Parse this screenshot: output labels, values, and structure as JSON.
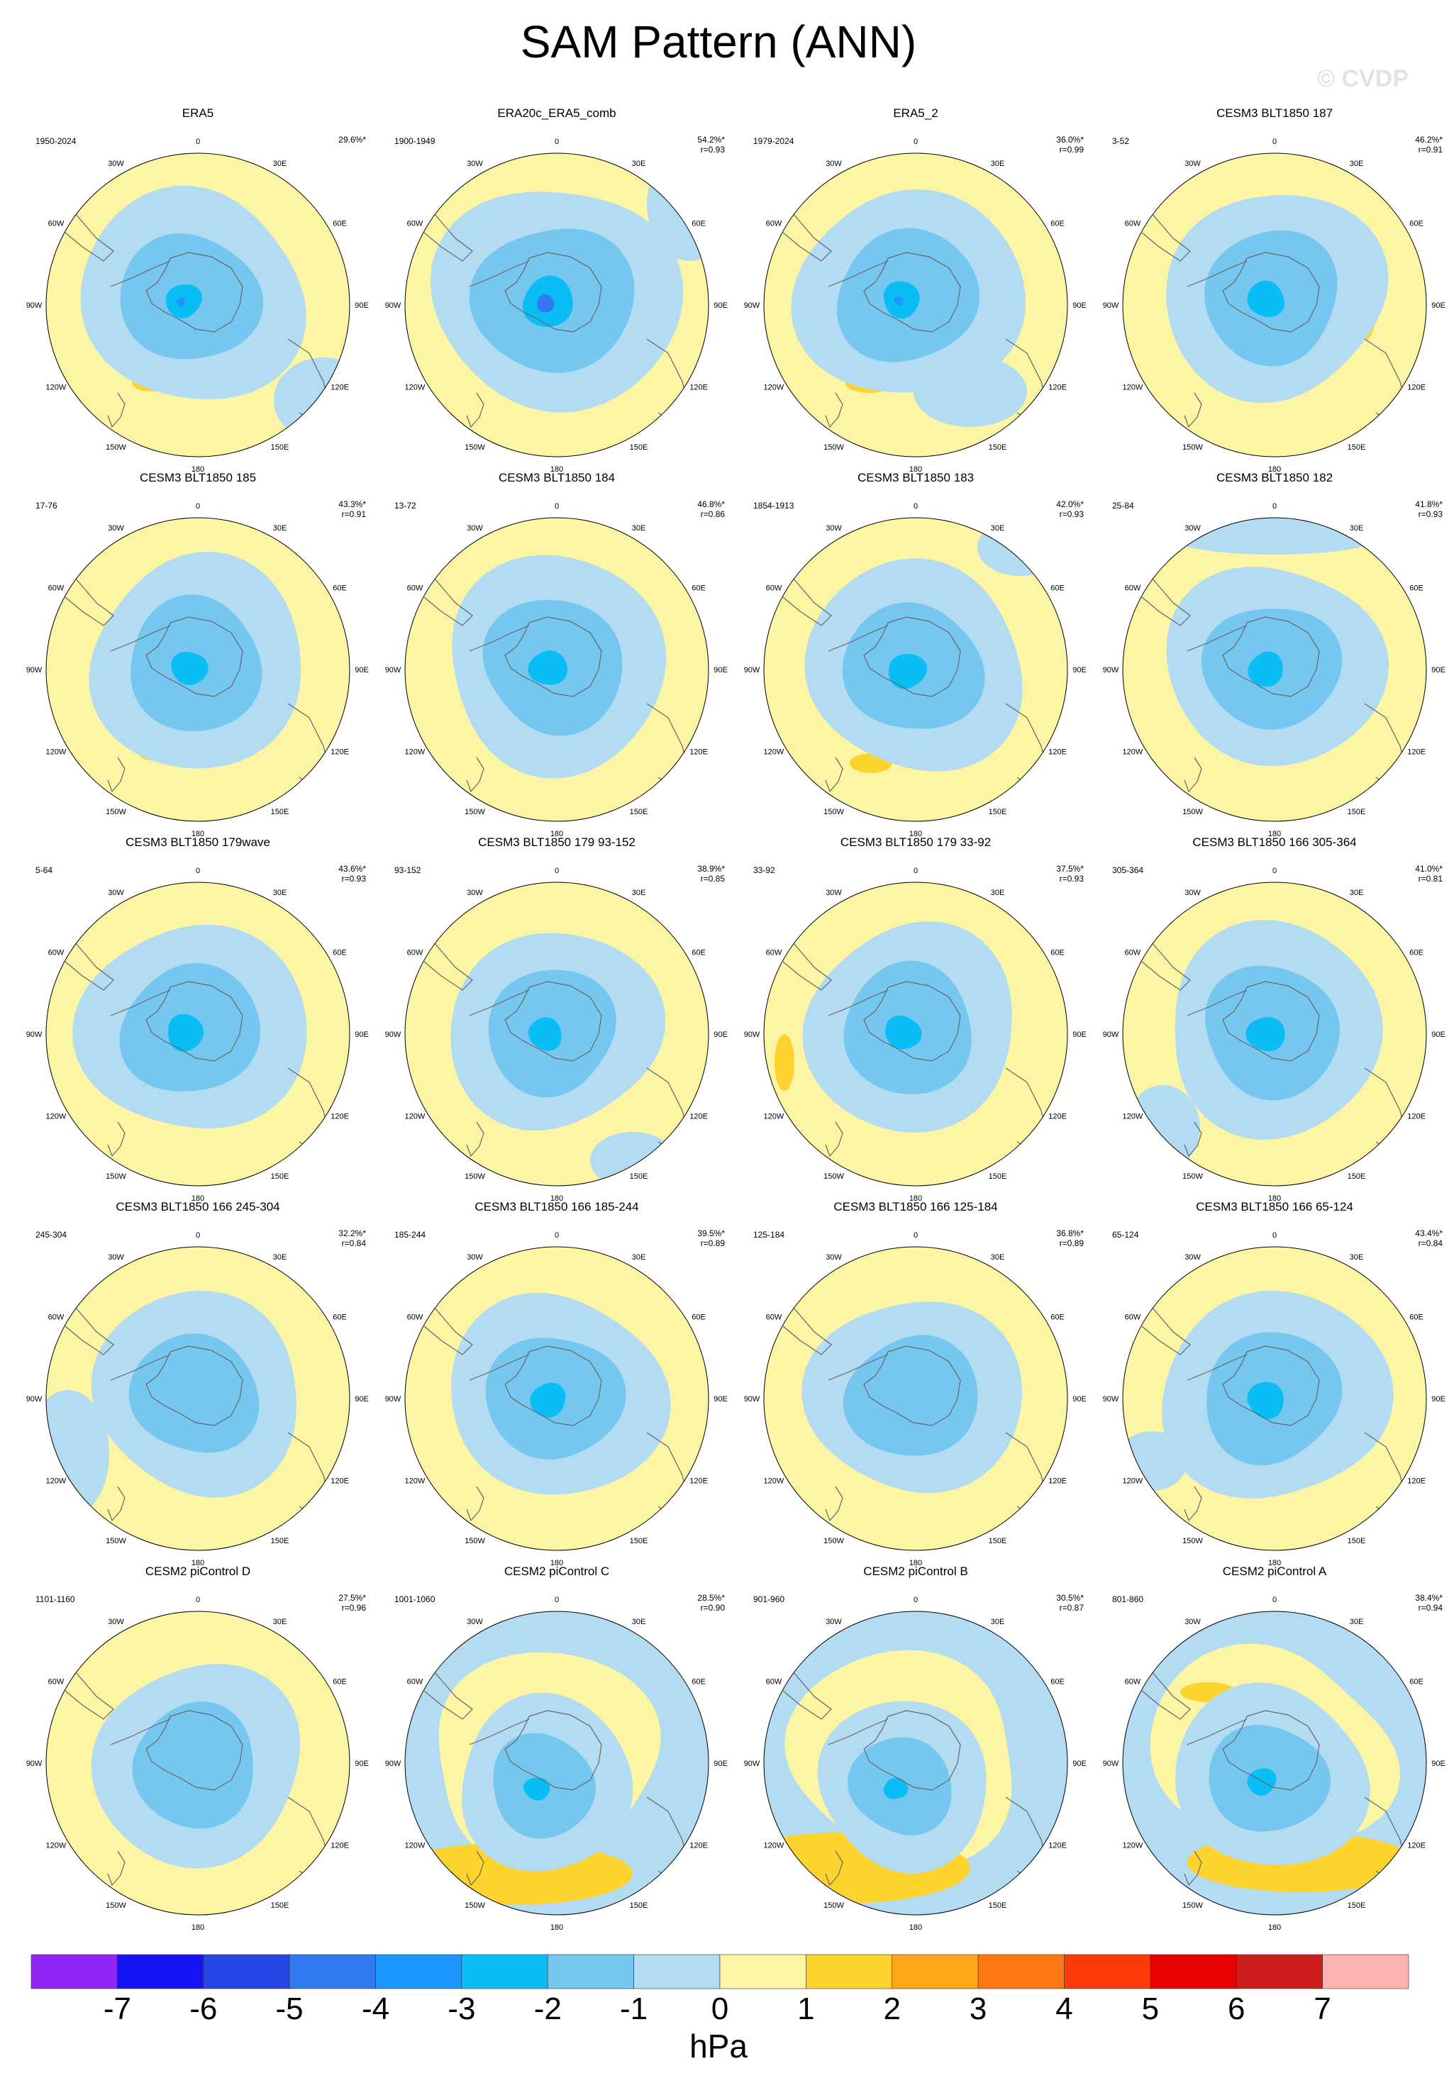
{
  "title": "SAM Pattern (ANN)",
  "watermark": "© CVDP",
  "longitude_labels": [
    "0",
    "30E",
    "60E",
    "90E",
    "120E",
    "150E",
    "180",
    "150W",
    "120W",
    "90W",
    "60W",
    "30W"
  ],
  "units": "hPa",
  "colorbar": {
    "labels": [
      "-7",
      "-6",
      "-5",
      "-4",
      "-3",
      "-2",
      "-1",
      "0",
      "1",
      "2",
      "3",
      "4",
      "5",
      "6",
      "7"
    ],
    "colors": [
      "#8f26f5",
      "#1414f4",
      "#2846e6",
      "#3278f0",
      "#1e96ff",
      "#0abef5",
      "#76c7f0",
      "#b3dcf3",
      "#fbf5a4",
      "#fdd32d",
      "#fea519",
      "#fe7814",
      "#fe3c0a",
      "#e80000",
      "#cc1e1e",
      "#ffb4b4"
    ]
  },
  "panels": [
    {
      "title": "ERA5",
      "period": "1950-2024",
      "pct": "29.6%*",
      "r": ""
    },
    {
      "title": "ERA20c_ERA5_comb",
      "period": "1900-1949",
      "pct": "54.2%*",
      "r": "r=0.93"
    },
    {
      "title": "ERA5_2",
      "period": "1979-2024",
      "pct": "36.0%*",
      "r": "r=0.99"
    },
    {
      "title": "CESM3 BLT1850 187",
      "period": "3-52",
      "pct": "46.2%*",
      "r": "r=0.91"
    },
    {
      "title": "CESM3 BLT1850 185",
      "period": "17-76",
      "pct": "43.3%*",
      "r": "r=0.91"
    },
    {
      "title": "CESM3 BLT1850 184",
      "period": "13-72",
      "pct": "46.8%*",
      "r": "r=0.86"
    },
    {
      "title": "CESM3 BLT1850 183",
      "period": "1854-1913",
      "pct": "42.0%*",
      "r": "r=0.93"
    },
    {
      "title": "CESM3 BLT1850 182",
      "period": "25-84",
      "pct": "41.8%*",
      "r": "r=0.93"
    },
    {
      "title": "CESM3 BLT1850 179wave",
      "period": "5-64",
      "pct": "43.6%*",
      "r": "r=0.93"
    },
    {
      "title": "CESM3 BLT1850 179 93-152",
      "period": "93-152",
      "pct": "38.9%*",
      "r": "r=0.85"
    },
    {
      "title": "CESM3 BLT1850 179 33-92",
      "period": "33-92",
      "pct": "37.5%*",
      "r": "r=0.93"
    },
    {
      "title": "CESM3 BLT1850 166 305-364",
      "period": "305-364",
      "pct": "41.0%*",
      "r": "r=0.81"
    },
    {
      "title": "CESM3 BLT1850 166 245-304",
      "period": "245-304",
      "pct": "32.2%*",
      "r": "r=0.84"
    },
    {
      "title": "CESM3 BLT1850 166 185-244",
      "period": "185-244",
      "pct": "39.5%*",
      "r": "r=0.89"
    },
    {
      "title": "CESM3 BLT1850 166 125-184",
      "period": "125-184",
      "pct": "36.8%*",
      "r": "r=0.89"
    },
    {
      "title": "CESM3 BLT1850 166 65-124",
      "period": "65-124",
      "pct": "43.4%*",
      "r": "r=0.84"
    },
    {
      "title": "CESM2 piControl D",
      "period": "1101-1160",
      "pct": "27.5%*",
      "r": "r=0.96"
    },
    {
      "title": "CESM2 piControl C",
      "period": "1001-1060",
      "pct": "28.5%*",
      "r": "r=0.90"
    },
    {
      "title": "CESM2 piControl B",
      "period": "901-960",
      "pct": "30.5%*",
      "r": "r=0.87"
    },
    {
      "title": "CESM2 piControl A",
      "period": "801-860",
      "pct": "38.4%*",
      "r": "r=0.94"
    }
  ]
}
